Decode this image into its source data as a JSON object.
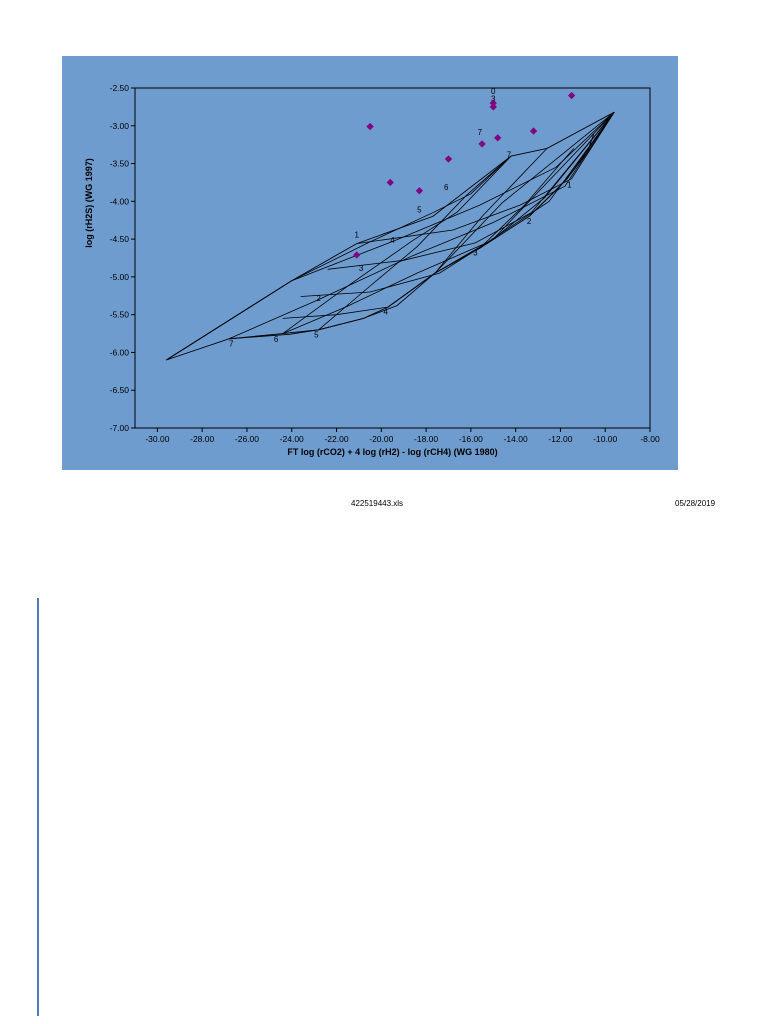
{
  "chart_data": {
    "type": "scatter",
    "xlabel": "FT  log (rCO2) + 4 log (rH2) - log (rCH4)  (WG 1980)",
    "ylabel": "log (rH2S)  (WG 1997)",
    "xlim": [
      -31,
      -8
    ],
    "ylim": [
      -7.0,
      -2.5
    ],
    "x_ticks": [
      "-30.00",
      "-28.00",
      "-26.00",
      "-24.00",
      "-22.00",
      "-20.00",
      "-18.00",
      "-16.00",
      "-14.00",
      "-12.00",
      "-10.00",
      "-8.00"
    ],
    "y_ticks": [
      "-2.50",
      "-3.00",
      "-3.50",
      "-4.00",
      "-4.50",
      "-5.00",
      "-5.50",
      "-6.00",
      "-6.50",
      "-7.00"
    ],
    "marker_color": "#800080",
    "background_color": "#6f9ccf",
    "grid": false,
    "points": [
      {
        "x": -20.5,
        "y": -3.01
      },
      {
        "x": -19.6,
        "y": -3.75
      },
      {
        "x": -18.3,
        "y": -3.86
      },
      {
        "x": -17.0,
        "y": -3.44
      },
      {
        "x": -15.5,
        "y": -3.24
      },
      {
        "x": -15.0,
        "y": -2.7
      },
      {
        "x": -15.0,
        "y": -2.75
      },
      {
        "x": -14.8,
        "y": -3.16
      },
      {
        "x": -13.2,
        "y": -3.07
      },
      {
        "x": -11.5,
        "y": -2.6
      },
      {
        "x": -21.1,
        "y": -4.71
      }
    ],
    "grid_overlay": {
      "lines_a": [
        {
          "label": "1",
          "pts": [
            [
              -21.1,
              -4.56
            ],
            [
              -16.8,
              -4.38
            ],
            [
              -13.8,
              -4.05
            ],
            [
              -11.5,
              -3.7
            ],
            [
              -9.6,
              -2.82
            ]
          ]
        },
        {
          "label": "2",
          "pts": [
            [
              -22.4,
              -4.9
            ],
            [
              -19.0,
              -4.78
            ],
            [
              -15.8,
              -4.55
            ],
            [
              -13.3,
              -4.15
            ],
            [
              -9.6,
              -2.82
            ]
          ]
        },
        {
          "label": "3",
          "pts": [
            [
              -23.6,
              -5.26
            ],
            [
              -20.5,
              -5.2
            ],
            [
              -17.4,
              -4.95
            ],
            [
              -15.0,
              -4.5
            ],
            [
              -9.6,
              -2.82
            ]
          ]
        },
        {
          "label": "4",
          "pts": [
            [
              -24.4,
              -5.55
            ],
            [
              -22.0,
              -5.5
            ],
            [
              -19.7,
              -5.4
            ],
            [
              -17.6,
              -4.95
            ],
            [
              -14.6,
              -4.02
            ],
            [
              -9.6,
              -2.82
            ]
          ]
        },
        {
          "label": "5",
          "pts": [
            [
              -26.8,
              -5.82
            ],
            [
              -24.1,
              -5.76
            ],
            [
              -22.8,
              -5.7
            ],
            [
              -20.8,
              -5.55
            ],
            [
              -19.3,
              -5.38
            ],
            [
              -17.6,
              -4.95
            ],
            [
              -15.0,
              -4.5
            ],
            [
              -12.7,
              -3.95
            ],
            [
              -9.6,
              -2.82
            ]
          ]
        }
      ],
      "lines_b": [
        {
          "label": "7",
          "pts": [
            [
              -29.6,
              -6.1
            ],
            [
              -24.0,
              -5.05
            ],
            [
              -19.4,
              -4.52
            ],
            [
              -15.6,
              -4.05
            ],
            [
              -12.2,
              -3.55
            ],
            [
              -9.6,
              -2.82
            ]
          ]
        },
        {
          "label": "6",
          "pts": [
            [
              -26.8,
              -5.82
            ],
            [
              -22.8,
              -5.3
            ],
            [
              -18.6,
              -4.72
            ],
            [
              -15.0,
              -4.28
            ],
            [
              -11.8,
              -3.8
            ],
            [
              -9.6,
              -2.82
            ]
          ]
        },
        {
          "label": "5",
          "pts": [
            [
              -24.4,
              -5.75
            ],
            [
              -21.6,
              -5.4
            ],
            [
              -18.4,
              -4.95
            ],
            [
              -15.3,
              -4.55
            ],
            [
              -12.5,
              -4.0
            ],
            [
              -9.6,
              -2.82
            ]
          ]
        }
      ],
      "cross_lines": [
        {
          "label": "7",
          "pts": [
            [
              -29.6,
              -6.1
            ],
            [
              -24.0,
              -5.05
            ],
            [
              -20.6,
              -4.55
            ],
            [
              -17.7,
              -4.15
            ],
            [
              -16.0,
              -3.9
            ],
            [
              -14.2,
              -3.4
            ]
          ]
        },
        {
          "label": "6",
          "pts": [
            [
              -24.4,
              -5.75
            ],
            [
              -21.4,
              -5.1
            ],
            [
              -18.6,
              -4.52
            ],
            [
              -16.6,
              -4.14
            ],
            [
              -14.2,
              -3.4
            ]
          ]
        },
        {
          "label": "5",
          "pts": [
            [
              -22.8,
              -5.7
            ],
            [
              -20.5,
              -5.12
            ],
            [
              -18.4,
              -4.6
            ],
            [
              -16.2,
              -3.92
            ],
            [
              -14.2,
              -3.4
            ]
          ]
        },
        {
          "label": "4",
          "pts": [
            [
              -19.7,
              -5.4
            ],
            [
              -17.6,
              -4.95
            ],
            [
              -15.5,
              -4.2
            ],
            [
              -12.6,
              -3.3
            ]
          ]
        },
        {
          "label": "3",
          "pts": [
            [
              -15.6,
              -4.62
            ],
            [
              -13.6,
              -4.05
            ],
            [
              -12.0,
              -3.5
            ],
            [
              -11.4,
              -3.3
            ]
          ]
        },
        {
          "label": "2",
          "pts": [
            [
              -13.4,
              -4.2
            ],
            [
              -12.0,
              -3.8
            ],
            [
              -10.8,
              -3.35
            ],
            [
              -10.5,
              -3.1
            ]
          ]
        },
        {
          "label": "1",
          "pts": [
            [
              -11.7,
              -3.7
            ],
            [
              -10.8,
              -3.35
            ],
            [
              -10.2,
              -3.1
            ],
            [
              -9.6,
              -2.82
            ]
          ]
        }
      ],
      "outline": [
        [
          -29.6,
          -6.1
        ],
        [
          -26.8,
          -5.82
        ],
        [
          -24.4,
          -5.75
        ],
        [
          -22.8,
          -5.7
        ],
        [
          -20.8,
          -5.55
        ],
        [
          -19.7,
          -5.4
        ],
        [
          -17.6,
          -4.95
        ],
        [
          -15.6,
          -4.62
        ],
        [
          -13.4,
          -4.2
        ],
        [
          -11.7,
          -3.7
        ],
        [
          -9.6,
          -2.82
        ]
      ],
      "outline_top": [
        [
          -29.6,
          -6.1
        ],
        [
          -24.0,
          -5.05
        ],
        [
          -21.1,
          -4.56
        ],
        [
          -17.7,
          -4.2
        ],
        [
          -14.2,
          -3.4
        ],
        [
          -12.6,
          -3.3
        ],
        [
          -9.6,
          -2.82
        ]
      ],
      "labels": [
        {
          "text": "7",
          "x": -26.7,
          "y": -5.92
        },
        {
          "text": "6",
          "x": -24.7,
          "y": -5.86
        },
        {
          "text": "5",
          "x": -22.9,
          "y": -5.8
        },
        {
          "text": "4",
          "x": -19.8,
          "y": -5.5
        },
        {
          "text": "3",
          "x": -15.8,
          "y": -4.72
        },
        {
          "text": "2",
          "x": -13.4,
          "y": -4.3
        },
        {
          "text": "1",
          "x": -11.6,
          "y": -3.82
        },
        {
          "text": "1",
          "x": -21.1,
          "y": -4.48
        },
        {
          "text": "2",
          "x": -22.8,
          "y": -5.32
        },
        {
          "text": "3",
          "x": -20.9,
          "y": -4.92
        },
        {
          "text": "4",
          "x": -19.5,
          "y": -4.55
        },
        {
          "text": "5",
          "x": -18.3,
          "y": -4.15
        },
        {
          "text": "6",
          "x": -17.1,
          "y": -3.85
        },
        {
          "text": "7",
          "x": -14.3,
          "y": -3.42
        },
        {
          "text": "7",
          "x": -15.6,
          "y": -3.12
        },
        {
          "text": "0",
          "x": -15.0,
          "y": -2.58
        },
        {
          "text": "3",
          "x": -15.0,
          "y": -2.68
        }
      ]
    }
  },
  "footer": {
    "filename": "422519443.xls",
    "date": "05/28/2019"
  }
}
